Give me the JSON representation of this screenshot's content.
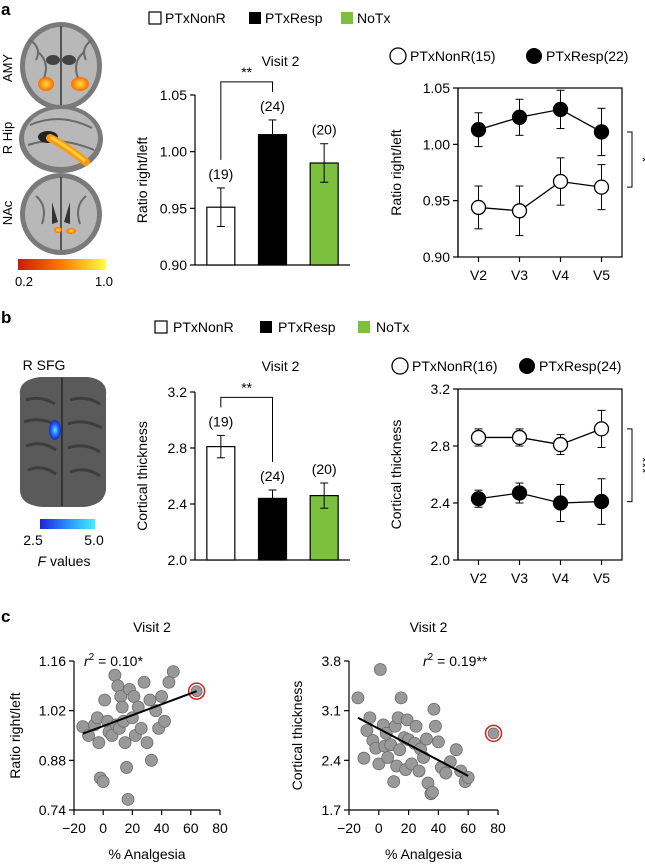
{
  "panels": {
    "a": "a",
    "b": "b",
    "c": "c"
  },
  "colors": {
    "nontx": "#7dbf3e",
    "resp": "#000000",
    "nonr": "#ffffff",
    "scatter": "#999999",
    "highlight": "#d62020"
  },
  "brain_a": {
    "labels": [
      "AMY",
      "R Hip",
      "NAc"
    ],
    "colorbar": {
      "min": "0.2",
      "max": "1.0"
    }
  },
  "brain_b": {
    "label": "R SFG",
    "colorbar": {
      "min": "2.5",
      "max": "5.0"
    },
    "f_letter": "F",
    "f_rest": " values"
  },
  "legend_bar_a": {
    "nonr": "PTxNonR",
    "resp": "PTxResp",
    "nontx": "NoTx"
  },
  "legend_bar_b": {
    "nonr": "PTxNonR",
    "resp": "PTxResp",
    "nontx": "NoTx"
  },
  "legend_line_a": {
    "nonr": "PTxNonR(15)",
    "resp": "PTxResp(22)"
  },
  "legend_line_b": {
    "nonr": "PTxNonR(16)",
    "resp": "PTxResp(24)"
  },
  "chart_data": [
    {
      "id": "a-bar",
      "type": "bar",
      "title": "Visit 2",
      "ylabel": "Ratio right/left",
      "xlabel": "",
      "categories": [
        "PTxNonR",
        "PTxResp",
        "NoTx"
      ],
      "values": [
        0.951,
        1.015,
        0.99
      ],
      "errors": [
        0.017,
        0.013,
        0.017
      ],
      "counts": [
        "(19)",
        "(24)",
        "(20)"
      ],
      "ylim": [
        0.9,
        1.05
      ],
      "ticks": [
        0.9,
        0.95,
        1.0,
        1.05
      ],
      "tick_labels": [
        "0.90",
        "0.95",
        "1.00",
        "1.05"
      ],
      "significance": "**"
    },
    {
      "id": "a-line",
      "type": "line",
      "title": "",
      "ylabel": "Ratio right/left",
      "xlabel": "",
      "categories": [
        "V2",
        "V3",
        "V4",
        "V5"
      ],
      "series": [
        {
          "name": "PTxNonR(15)",
          "values": [
            0.944,
            0.941,
            0.967,
            0.962
          ],
          "errors": [
            0.019,
            0.022,
            0.021,
            0.02
          ]
        },
        {
          "name": "PTxResp(22)",
          "values": [
            1.013,
            1.024,
            1.031,
            1.011
          ],
          "errors": [
            0.015,
            0.016,
            0.017,
            0.021
          ]
        }
      ],
      "ylim": [
        0.9,
        1.05
      ],
      "ticks": [
        0.9,
        0.95,
        1.0,
        1.05
      ],
      "tick_labels": [
        "0.90",
        "0.95",
        "1.00",
        "1.05"
      ],
      "significance": "*"
    },
    {
      "id": "b-bar",
      "type": "bar",
      "title": "Visit 2",
      "ylabel": "Cortical thickness",
      "xlabel": "",
      "categories": [
        "PTxNonR",
        "PTxResp",
        "NoTx"
      ],
      "values": [
        2.81,
        2.44,
        2.46
      ],
      "errors": [
        0.08,
        0.06,
        0.09
      ],
      "counts": [
        "(19)",
        "(24)",
        "(20)"
      ],
      "ylim": [
        2.0,
        3.2
      ],
      "ticks": [
        2.0,
        2.4,
        2.8,
        3.2
      ],
      "tick_labels": [
        "2.0",
        "2.4",
        "2.8",
        "3.2"
      ],
      "significance": "**"
    },
    {
      "id": "b-line",
      "type": "line",
      "title": "",
      "ylabel": "Cortical thickness",
      "xlabel": "",
      "categories": [
        "V2",
        "V3",
        "V4",
        "V5"
      ],
      "series": [
        {
          "name": "PTxNonR(16)",
          "values": [
            2.86,
            2.86,
            2.81,
            2.92
          ],
          "errors": [
            0.06,
            0.06,
            0.07,
            0.13
          ]
        },
        {
          "name": "PTxResp(24)",
          "values": [
            2.43,
            2.47,
            2.4,
            2.41
          ],
          "errors": [
            0.06,
            0.07,
            0.13,
            0.16
          ]
        }
      ],
      "ylim": [
        2.0,
        3.2
      ],
      "ticks": [
        2.0,
        2.4,
        2.8,
        3.2
      ],
      "tick_labels": [
        "2.0",
        "2.4",
        "2.8",
        "3.2"
      ],
      "significance": "***"
    },
    {
      "id": "c-left",
      "type": "scatter",
      "title": "Visit 2",
      "xlabel": "% Analgesia",
      "ylabel": "Ratio right/left",
      "r2_label": "r",
      "r2_sup": "2",
      "r2_value": " = 0.10*",
      "xlim": [
        -20,
        80
      ],
      "ylim": [
        0.74,
        1.16
      ],
      "xticks": [
        -20,
        0,
        20,
        40,
        60,
        80
      ],
      "xtick_labels": [
        "−20",
        "0",
        "20",
        "40",
        "60",
        "80"
      ],
      "yticks": [
        0.74,
        0.88,
        1.02,
        1.16
      ],
      "ytick_labels": [
        "0.74",
        "0.88",
        "1.02",
        "1.16"
      ],
      "points": [
        [
          -14,
          0.975
        ],
        [
          -10,
          0.95
        ],
        [
          -6,
          0.98
        ],
        [
          -4,
          1.0
        ],
        [
          -3,
          0.93
        ],
        [
          -2,
          0.83
        ],
        [
          0,
          0.82
        ],
        [
          1,
          1.05
        ],
        [
          3,
          0.99
        ],
        [
          4,
          0.96
        ],
        [
          6,
          0.95
        ],
        [
          8,
          1.12
        ],
        [
          9,
          0.98
        ],
        [
          10,
          1.09
        ],
        [
          11,
          0.97
        ],
        [
          12,
          1.06
        ],
        [
          13,
          1.03
        ],
        [
          14,
          0.99
        ],
        [
          15,
          0.93
        ],
        [
          16,
          0.86
        ],
        [
          17,
          0.77
        ],
        [
          18,
          1.08
        ],
        [
          20,
          1.0
        ],
        [
          21,
          1.06
        ],
        [
          22,
          0.95
        ],
        [
          24,
          1.03
        ],
        [
          26,
          0.97
        ],
        [
          28,
          1.1
        ],
        [
          30,
          0.93
        ],
        [
          32,
          1.05
        ],
        [
          33,
          0.88
        ],
        [
          36,
          1.02
        ],
        [
          38,
          0.97
        ],
        [
          40,
          1.06
        ],
        [
          42,
          0.99
        ],
        [
          45,
          1.1
        ],
        [
          48,
          1.13
        ]
      ],
      "highlight": [
        64,
        1.075
      ],
      "fit": {
        "x0": -14,
        "y0": 0.955,
        "x1": 64,
        "y1": 1.075
      }
    },
    {
      "id": "c-right",
      "type": "scatter",
      "title": "Visit 2",
      "xlabel": "% Analgesia",
      "ylabel": "Cortical thickness",
      "r2_label": "r",
      "r2_sup": "2",
      "r2_value": " = 0.19**",
      "xlim": [
        -20,
        80
      ],
      "ylim": [
        1.7,
        3.8
      ],
      "xticks": [
        -20,
        0,
        20,
        40,
        60,
        80
      ],
      "xtick_labels": [
        "−20",
        "0",
        "20",
        "40",
        "60",
        "80"
      ],
      "yticks": [
        1.7,
        2.4,
        3.1,
        3.8
      ],
      "ytick_labels": [
        "1.7",
        "2.4",
        "3.1",
        "3.8"
      ],
      "points": [
        [
          -14,
          3.28
        ],
        [
          -10,
          2.43
        ],
        [
          -8,
          2.82
        ],
        [
          -6,
          3.0
        ],
        [
          -4,
          2.68
        ],
        [
          -2,
          2.57
        ],
        [
          0,
          2.35
        ],
        [
          1,
          3.68
        ],
        [
          3,
          2.9
        ],
        [
          4,
          2.6
        ],
        [
          5,
          2.78
        ],
        [
          6,
          2.44
        ],
        [
          8,
          2.62
        ],
        [
          10,
          2.1
        ],
        [
          11,
          2.88
        ],
        [
          12,
          2.32
        ],
        [
          13,
          3.0
        ],
        [
          14,
          2.55
        ],
        [
          15,
          3.28
        ],
        [
          17,
          2.72
        ],
        [
          18,
          2.27
        ],
        [
          19,
          2.97
        ],
        [
          20,
          2.69
        ],
        [
          22,
          2.35
        ],
        [
          24,
          2.64
        ],
        [
          25,
          2.88
        ],
        [
          27,
          2.25
        ],
        [
          28,
          2.56
        ],
        [
          30,
          2.44
        ],
        [
          32,
          2.7
        ],
        [
          33,
          2.08
        ],
        [
          35,
          1.93
        ],
        [
          36,
          1.95
        ],
        [
          37,
          3.12
        ],
        [
          38,
          2.88
        ],
        [
          40,
          2.66
        ],
        [
          42,
          2.3
        ],
        [
          45,
          2.22
        ],
        [
          48,
          2.38
        ],
        [
          52,
          2.55
        ],
        [
          55,
          2.25
        ],
        [
          58,
          2.1
        ],
        [
          60,
          2.16
        ]
      ],
      "highlight": [
        77,
        2.78
      ],
      "fit": {
        "x0": -14,
        "y0": 3.0,
        "x1": 60,
        "y1": 2.18
      }
    }
  ]
}
